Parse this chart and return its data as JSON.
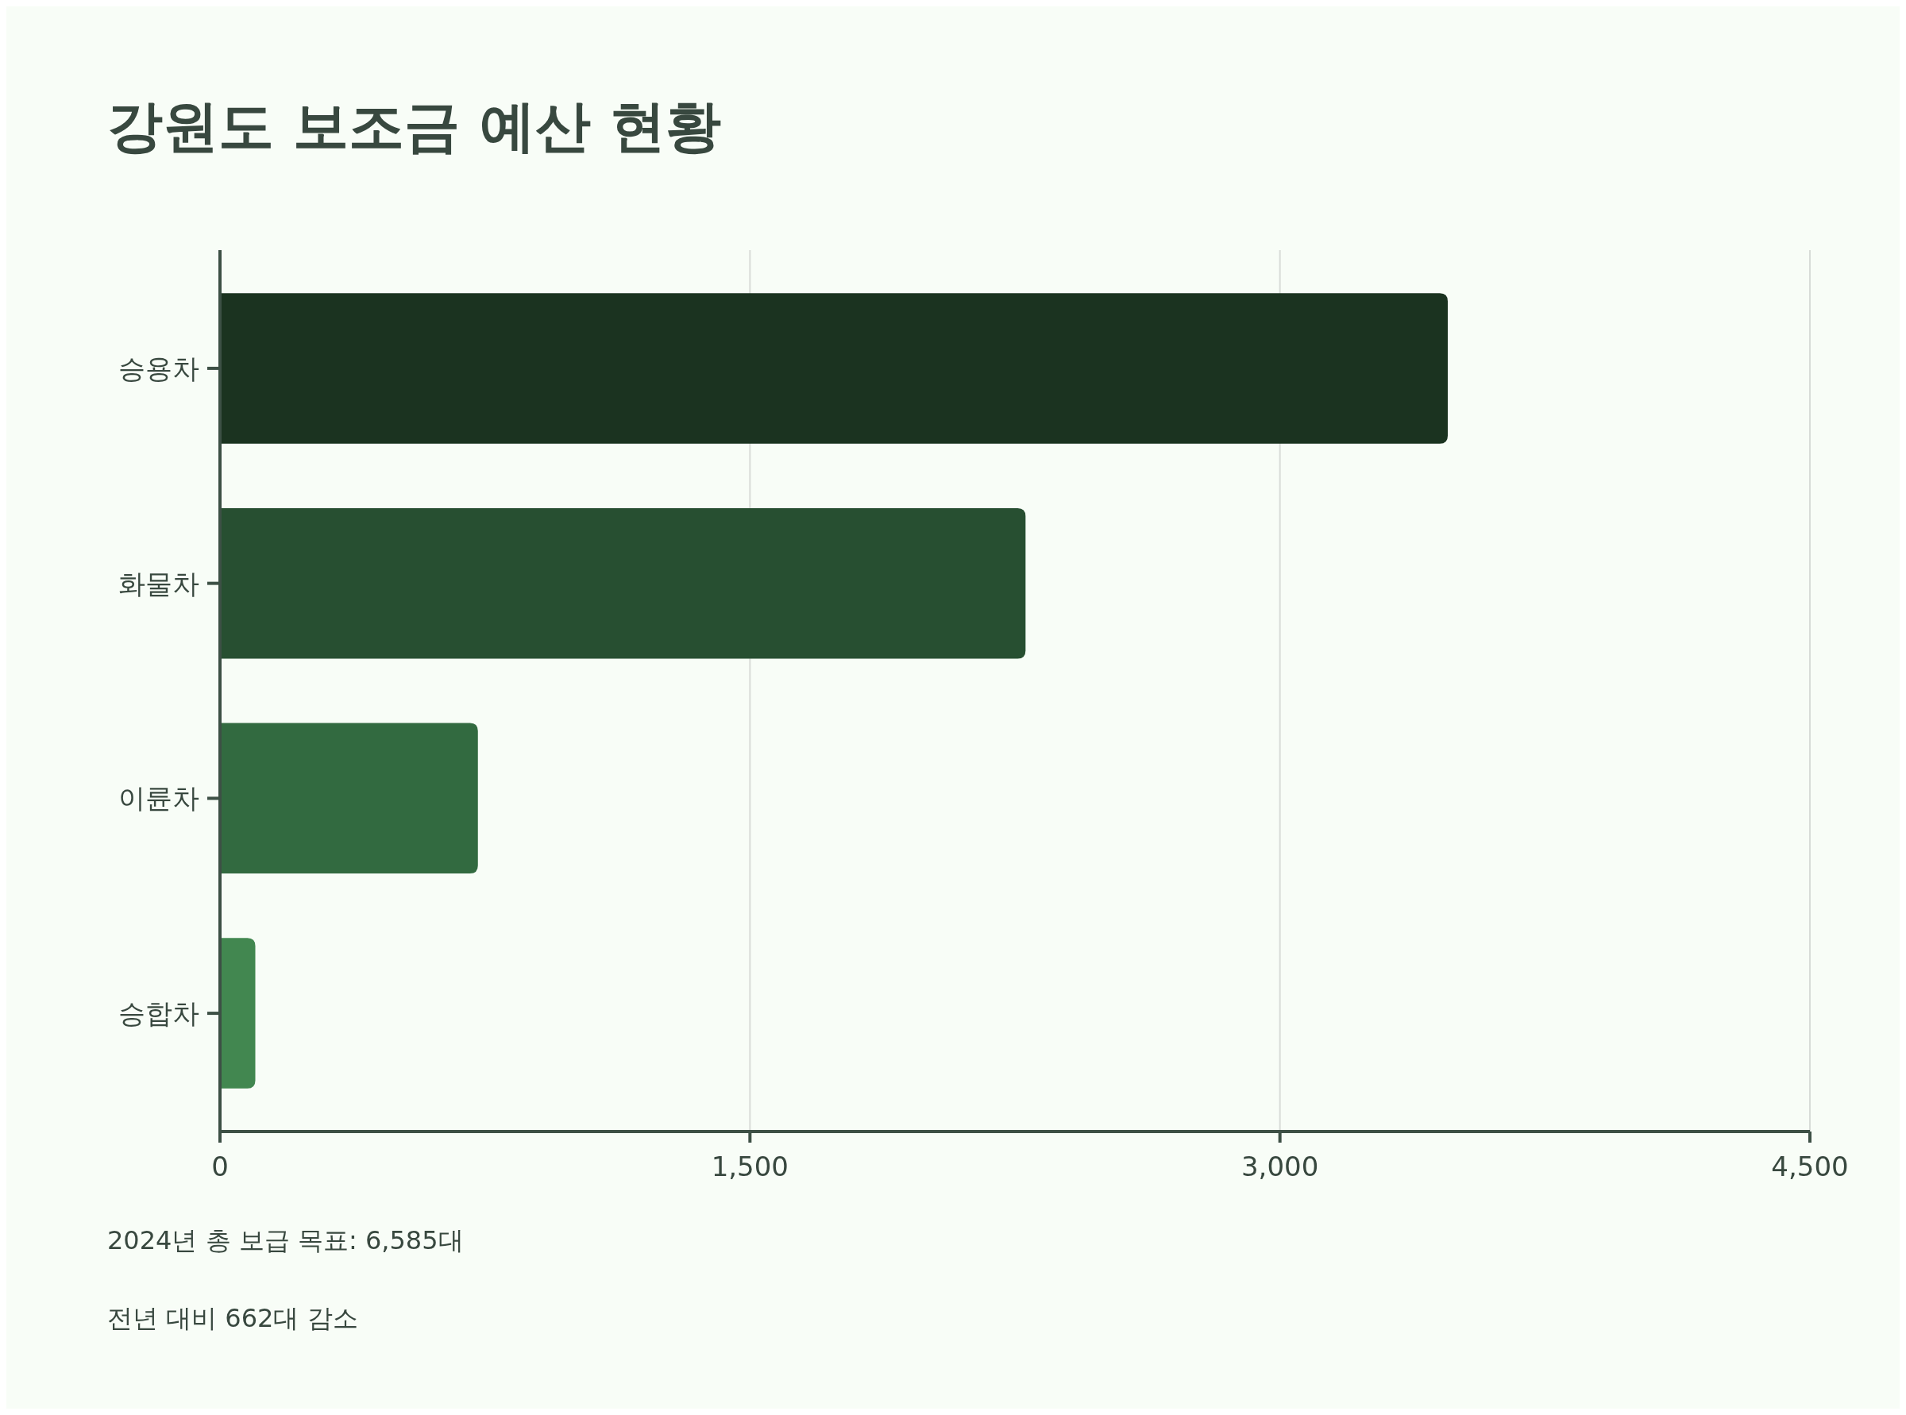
{
  "chart_data": {
    "type": "bar",
    "orientation": "horizontal",
    "title": "강원도 보조금 예산 현황",
    "categories": [
      "승용차",
      "화물차",
      "이륜차",
      "승합차"
    ],
    "values": [
      3475,
      2280,
      730,
      100
    ],
    "colors": [
      "#1b3320",
      "#274f31",
      "#326a40",
      "#428750"
    ],
    "xlim": [
      0,
      4500
    ],
    "xticks": [
      0,
      {
        "value": 1500,
        "label": "1,500"
      },
      {
        "value": 3000,
        "label": "3,000"
      },
      {
        "value": 4500,
        "label": "4,500"
      }
    ],
    "grid": "x",
    "annotations": [
      "2024년 총 보급 목표: 6,585대",
      "전년 대비 662대 감소"
    ]
  }
}
